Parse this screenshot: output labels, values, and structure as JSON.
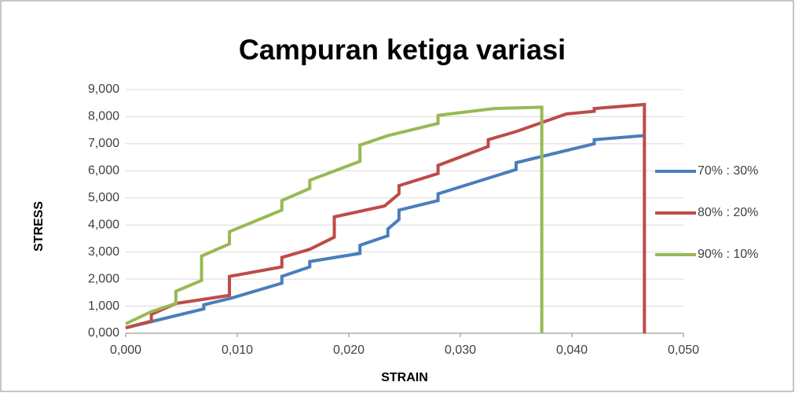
{
  "chart_data": {
    "type": "line",
    "title": "Campuran ketiga variasi",
    "xlabel": "STRAIN",
    "ylabel": "STRESS",
    "xlim": [
      0,
      0.05
    ],
    "xticks": [
      {
        "value": 0,
        "label": "0,000"
      },
      {
        "value": 0.01,
        "label": "0,010"
      },
      {
        "value": 0.02,
        "label": "0,020"
      },
      {
        "value": 0.03,
        "label": "0,030"
      },
      {
        "value": 0.04,
        "label": "0,040"
      },
      {
        "value": 0.05,
        "label": "0,050"
      }
    ],
    "ylim": [
      0,
      9
    ],
    "yticks": [
      {
        "value": 0,
        "label": "0,000"
      },
      {
        "value": 1,
        "label": "1,000"
      },
      {
        "value": 2,
        "label": "2,000"
      },
      {
        "value": 3,
        "label": "3,000"
      },
      {
        "value": 4,
        "label": "4,000"
      },
      {
        "value": 5,
        "label": "5,000"
      },
      {
        "value": 6,
        "label": "6,000"
      },
      {
        "value": 7,
        "label": "7,000"
      },
      {
        "value": 8,
        "label": "8,000"
      },
      {
        "value": 9,
        "label": "9,000"
      }
    ],
    "grid": true,
    "legend": "right",
    "series": [
      {
        "name": "70% : 30%",
        "color": "#4a7ebb",
        "x": [
          0,
          0.0025,
          0.007,
          0.007,
          0.0095,
          0.014,
          0.014,
          0.0165,
          0.0165,
          0.021,
          0.021,
          0.0235,
          0.0235,
          0.0245,
          0.0245,
          0.028,
          0.028,
          0.035,
          0.035,
          0.0395,
          0.042,
          0.042,
          0.0465
        ],
        "values": [
          0.2,
          0.45,
          0.9,
          1.05,
          1.3,
          1.85,
          2.1,
          2.45,
          2.65,
          2.95,
          3.25,
          3.6,
          3.85,
          4.2,
          4.55,
          4.9,
          5.15,
          6.05,
          6.3,
          6.75,
          7.0,
          7.15,
          7.3
        ]
      },
      {
        "name": "80% : 20%",
        "color": "#be4b48",
        "x": [
          0,
          0.0023,
          0.0023,
          0.0045,
          0.0093,
          0.0093,
          0.014,
          0.014,
          0.0165,
          0.0187,
          0.0187,
          0.0232,
          0.0245,
          0.0245,
          0.028,
          0.028,
          0.0325,
          0.0325,
          0.035,
          0.0395,
          0.042,
          0.042,
          0.0465,
          0.0465
        ],
        "values": [
          0.2,
          0.45,
          0.7,
          1.1,
          1.4,
          2.1,
          2.45,
          2.8,
          3.1,
          3.55,
          4.3,
          4.7,
          5.15,
          5.45,
          5.9,
          6.2,
          6.9,
          7.15,
          7.45,
          8.1,
          8.2,
          8.3,
          8.45,
          0
        ]
      },
      {
        "name": "90% : 10%",
        "color": "#98b954",
        "x": [
          0,
          0.0023,
          0.0045,
          0.0045,
          0.0068,
          0.0068,
          0.0093,
          0.0093,
          0.014,
          0.014,
          0.0165,
          0.0165,
          0.021,
          0.021,
          0.0235,
          0.028,
          0.028,
          0.033,
          0.0373,
          0.0373
        ],
        "values": [
          0.35,
          0.8,
          1.1,
          1.55,
          1.95,
          2.85,
          3.3,
          3.75,
          4.55,
          4.9,
          5.35,
          5.65,
          6.35,
          6.95,
          7.3,
          7.75,
          8.05,
          8.3,
          8.35,
          0
        ]
      }
    ]
  }
}
